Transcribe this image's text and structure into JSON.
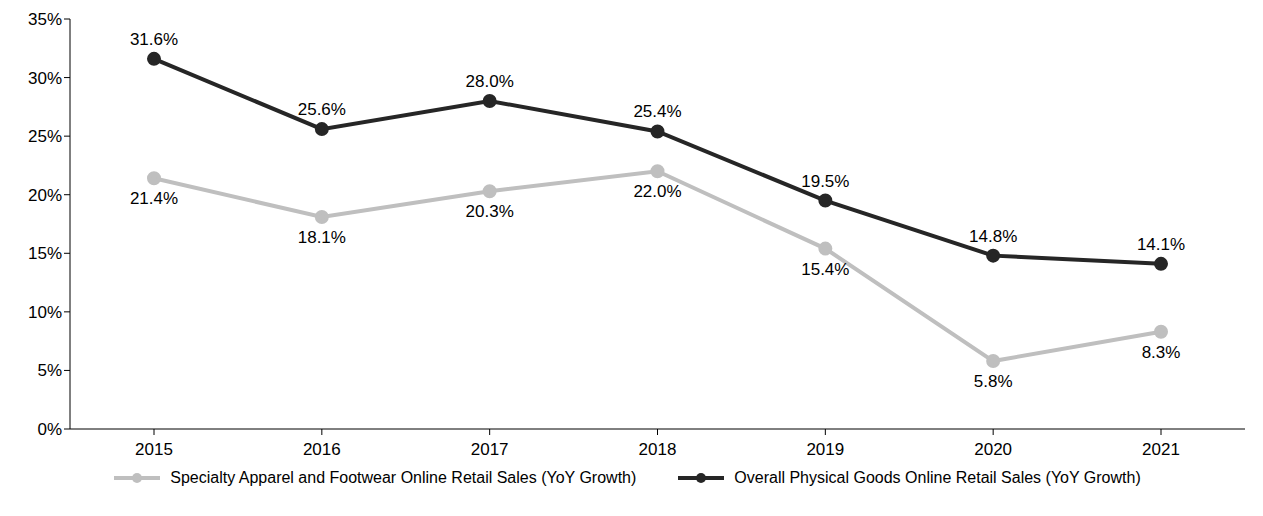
{
  "chart_data": {
    "type": "line",
    "categories": [
      "2015",
      "2016",
      "2017",
      "2018",
      "2019",
      "2020",
      "2021"
    ],
    "series": [
      {
        "name": "Specialty Apparel and Footwear Online Retail Sales (YoY Growth)",
        "color": "#BFBFBF",
        "marker": "circle",
        "values": [
          21.4,
          18.1,
          20.3,
          22.0,
          15.4,
          5.8,
          8.3
        ],
        "value_labels": [
          "21.4%",
          "18.1%",
          "20.3%",
          "22.0%",
          "15.4%",
          "5.8%",
          "8.3%"
        ]
      },
      {
        "name": "Overall Physical Goods Online Retail Sales (YoY Growth)",
        "color": "#262626",
        "marker": "circle",
        "values": [
          31.6,
          25.6,
          28.0,
          25.4,
          19.5,
          14.8,
          14.1
        ],
        "value_labels": [
          "31.6%",
          "25.6%",
          "28.0%",
          "25.4%",
          "19.5%",
          "14.8%",
          "14.1%"
        ]
      }
    ],
    "ylim": [
      0,
      35
    ],
    "yticks": [
      {
        "value": 0,
        "label": "0%"
      },
      {
        "value": 5,
        "label": "5%"
      },
      {
        "value": 10,
        "label": "10%"
      },
      {
        "value": 15,
        "label": "15%"
      },
      {
        "value": 20,
        "label": "20%"
      },
      {
        "value": 25,
        "label": "25%"
      },
      {
        "value": 30,
        "label": "30%"
      },
      {
        "value": 35,
        "label": "35%"
      }
    ],
    "grid": false,
    "data_labels": true,
    "legend": "bottom"
  }
}
